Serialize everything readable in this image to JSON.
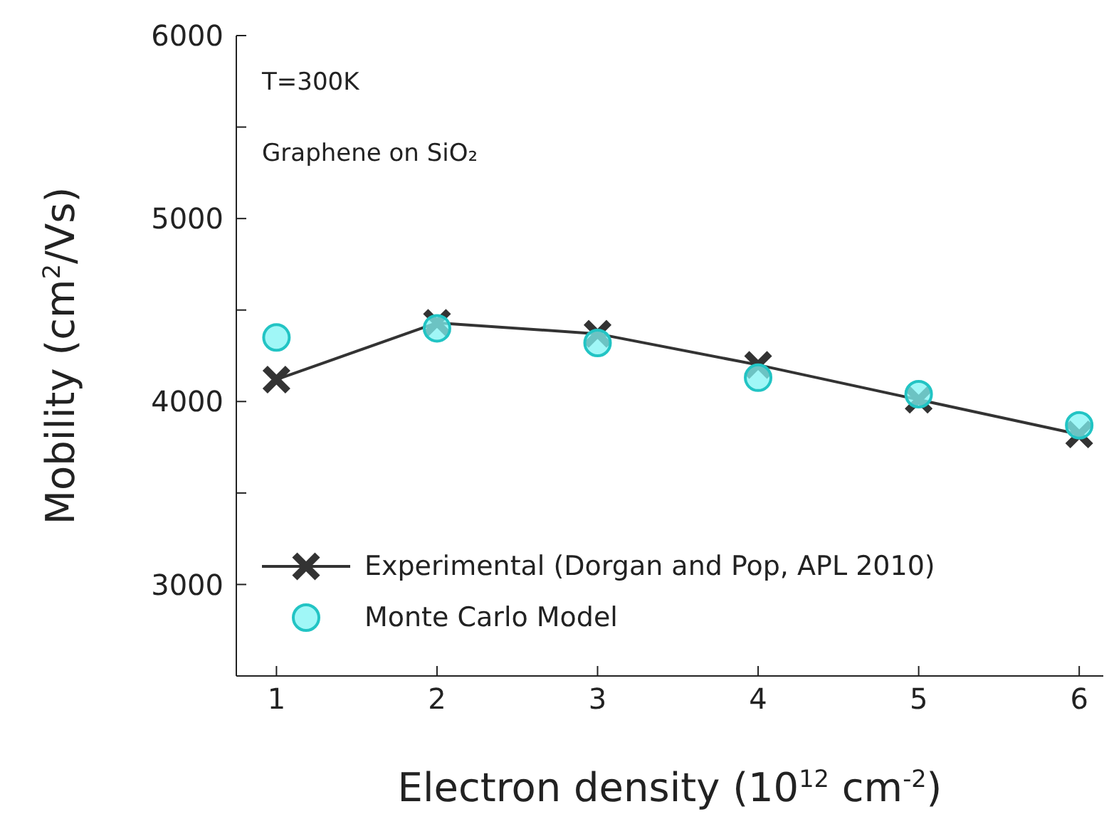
{
  "chart_data": {
    "type": "line",
    "xlabel": "Electron density (10$^{12}$ cm$^{-2}$)",
    "ylabel": "Mobility (cm$^{2}$/Vs)",
    "annotations": [
      "T=300K",
      "Graphene on SiO₂"
    ],
    "x": [
      1,
      2,
      3,
      4,
      5,
      6
    ],
    "series": [
      {
        "name": "Experimental (Dorgan and Pop, APL 2010)",
        "color": "#333333",
        "marker": "cross",
        "line_style": "solid",
        "values": [
          4120,
          4430,
          4370,
          4200,
          4010,
          3820
        ]
      },
      {
        "name": "Monte Carlo Model",
        "type": "scatter",
        "color": "#80f4f4",
        "marker": "circle",
        "values": [
          4350,
          4400,
          4320,
          4130,
          4040,
          3870
        ]
      }
    ],
    "xlim": [
      0.75,
      6.15
    ],
    "xticks": [
      1,
      2,
      3,
      4,
      5,
      6
    ],
    "ylim": [
      2500,
      6000
    ],
    "yticks": [
      3000,
      {
        "value": 3500,
        "label": null
      },
      4000,
      {
        "value": 4500,
        "label": null
      },
      5000,
      {
        "value": 5500,
        "label": null
      },
      6000
    ],
    "grid": false,
    "legend": "bottom left"
  }
}
